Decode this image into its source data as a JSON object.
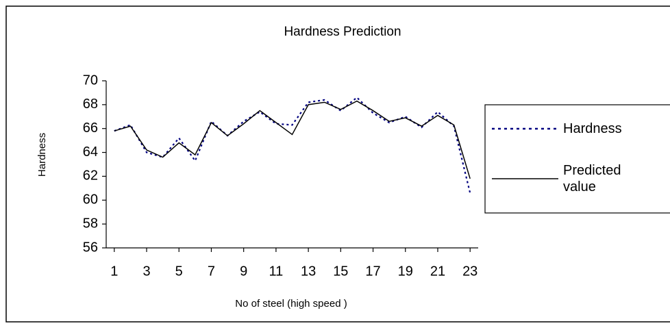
{
  "chart_data": {
    "type": "line",
    "title": "Hardness Prediction",
    "x_label": "No of steel (high speed )",
    "y_label": "Hardness",
    "x": [
      1,
      2,
      3,
      4,
      5,
      6,
      7,
      8,
      9,
      10,
      11,
      12,
      13,
      14,
      15,
      16,
      17,
      18,
      19,
      20,
      21,
      22,
      23
    ],
    "xlim": [
      0.5,
      23.5
    ],
    "xticks": [
      1,
      3,
      5,
      7,
      9,
      11,
      13,
      15,
      17,
      19,
      21,
      23
    ],
    "ylim": [
      56,
      70
    ],
    "yticks": [
      56,
      58,
      60,
      62,
      64,
      66,
      68,
      70
    ],
    "grid": false,
    "legend": "right",
    "series": [
      {
        "name": "Hardness",
        "color": "#000080",
        "style": "dotted",
        "values": [
          65.8,
          66.3,
          64.0,
          63.6,
          65.2,
          63.3,
          66.6,
          65.4,
          66.6,
          67.4,
          66.4,
          66.3,
          68.2,
          68.4,
          67.5,
          68.6,
          67.3,
          66.5,
          67.0,
          66.1,
          67.4,
          66.2,
          60.6
        ]
      },
      {
        "name": "Predicted value",
        "color": "#000000",
        "style": "solid",
        "values": [
          65.8,
          66.2,
          64.2,
          63.6,
          64.8,
          63.8,
          66.5,
          65.4,
          66.4,
          67.5,
          66.5,
          65.5,
          68.0,
          68.2,
          67.6,
          68.3,
          67.5,
          66.6,
          66.9,
          66.2,
          67.1,
          66.3,
          61.8
        ]
      }
    ]
  }
}
